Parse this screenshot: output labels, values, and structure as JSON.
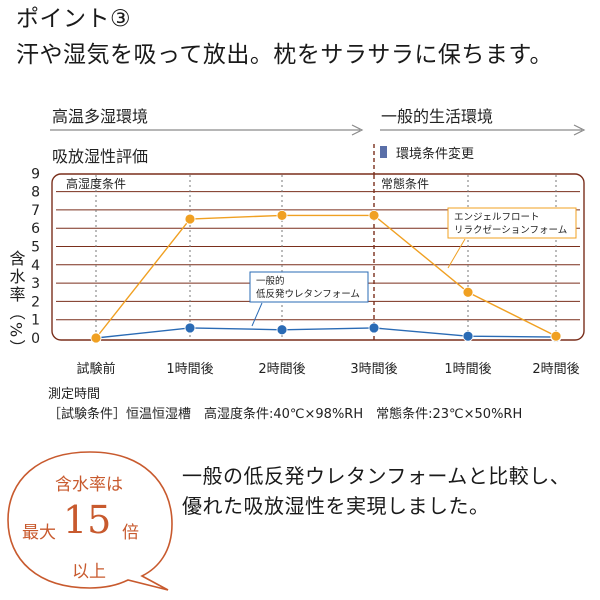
{
  "headline": {
    "line1": "ポイント③",
    "line2": "汗や湿気を吸って放出。枕をサラサラに保ちます。"
  },
  "colors": {
    "accent": "#7a2f1c",
    "orange": "#f0a022",
    "blue": "#2a6bb5",
    "callout": "#c85a2e"
  },
  "chart_data": {
    "type": "line",
    "title": "吸放湿性評価",
    "ylabel": "含水率（%）",
    "xlabel": "測定時間",
    "ylim": [
      0,
      9
    ],
    "yticks": [
      "0",
      "1",
      "2",
      "3",
      "4",
      "5",
      "6",
      "7",
      "8",
      "9"
    ],
    "categories": [
      "試験前",
      "1時間後",
      "2時間後",
      "3時間後",
      "1時間後",
      "2時間後"
    ],
    "phases": [
      {
        "label": "高温多湿環境",
        "condition": "高湿度条件"
      },
      {
        "label": "一般的生活環境",
        "condition": "常態条件"
      }
    ],
    "change_marker": "環境条件変更",
    "series": [
      {
        "name": "エンジェルフロート リラクゼーションフォーム",
        "name_line1": "エンジェルフロート",
        "name_line2": "リラクゼーションフォーム",
        "values": [
          0.0,
          6.5,
          6.7,
          6.7,
          2.5,
          0.1
        ]
      },
      {
        "name": "一般的 低反発ウレタンフォーム",
        "name_line1": "一般的",
        "name_line2": "低反発ウレタンフォーム",
        "values": [
          0.0,
          0.55,
          0.45,
          0.55,
          0.1,
          0.05
        ]
      }
    ],
    "footnote": "［試験条件］恒温恒湿槽　高湿度条件:40℃×98%RH　常態条件:23℃×50%RH"
  },
  "callout": {
    "line1": "一般の低反発ウレタンフォームと比較し、",
    "line2": "優れた吸放湿性を実現しました。"
  },
  "badge": {
    "line1": "含水率は",
    "prefix": "最大",
    "number": "15",
    "suffix": "倍",
    "line3": "以上"
  }
}
